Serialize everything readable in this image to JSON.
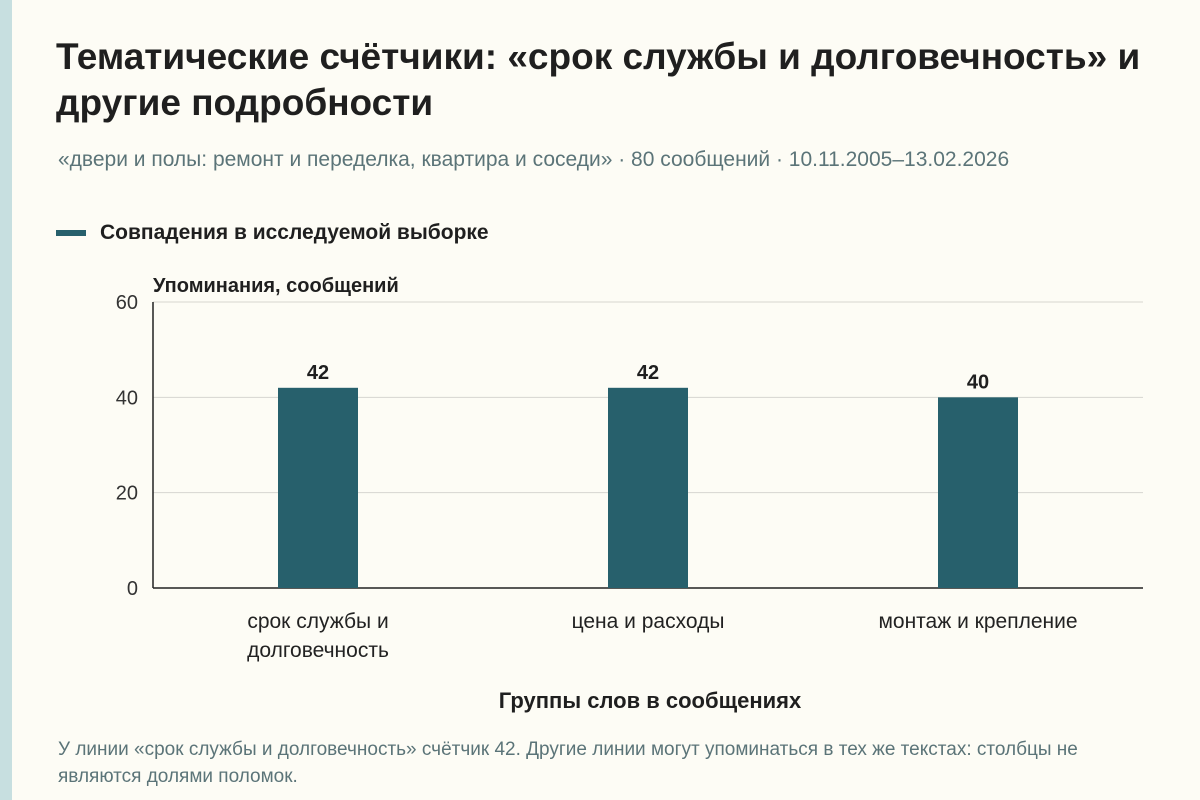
{
  "title": "Тематические счётчики: «срок службы и долговечность» и другие подробности",
  "subtitle": "«двери и полы: ремонт и переделка, квартира и соседи» · 80 сообщений · 10.11.2005–13.02.2026",
  "caption": "У линии «срок службы и долговечность» счётчик 42. Другие линии могут упоминаться в тех же текстах: столбцы не являются долями поломок.",
  "colors": {
    "bar": "#27606c",
    "axis": "#222222",
    "grid": "#d6d6d0",
    "edge": "#c7dfe0"
  },
  "chart_data": {
    "type": "bar",
    "xlabel": "Группы слов в сообщениях",
    "ylabel": "Упоминания, сообщений",
    "ylim": [
      0,
      60
    ],
    "yticks": [
      0,
      20,
      40,
      60
    ],
    "grid": true,
    "legend_position": "top-left",
    "categories": [
      "срок службы и долговечность",
      "цена и расходы",
      "монтаж и крепление"
    ],
    "series": [
      {
        "name": "Совпадения в исследуемой выборке",
        "values": [
          42,
          42,
          40
        ],
        "labels": [
          "42",
          "42",
          "40"
        ]
      }
    ]
  }
}
